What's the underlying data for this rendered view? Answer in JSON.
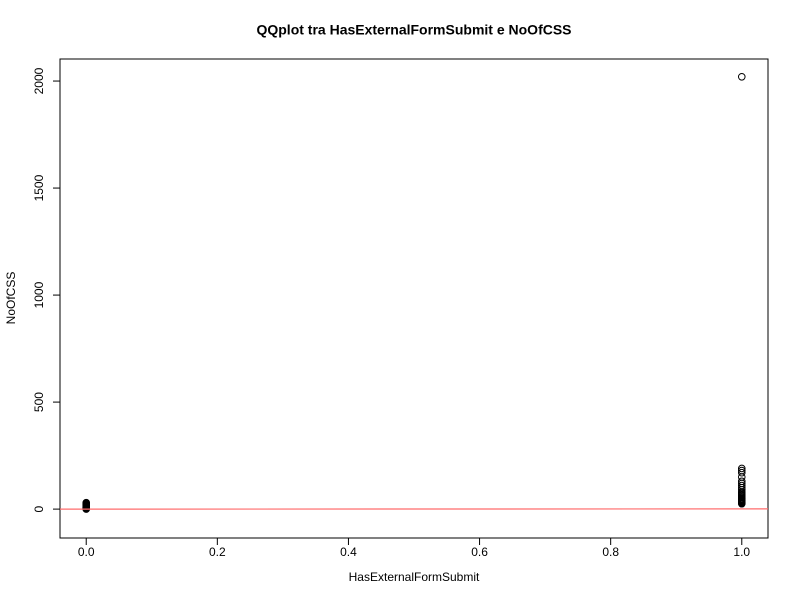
{
  "chart_data": {
    "type": "scatter",
    "title": "QQplot tra HasExternalFormSubmit e NoOfCSS",
    "x_label": "HasExternalFormSubmit",
    "y_label": "NoOfCSS",
    "x": [
      0,
      0,
      0,
      0,
      0,
      0,
      0,
      0,
      0,
      0,
      0,
      0,
      0,
      0,
      1,
      1,
      1,
      1,
      1,
      1,
      1,
      1,
      1,
      1,
      1,
      1,
      1,
      1,
      1,
      1,
      1,
      1,
      1,
      1,
      1,
      1,
      1,
      1,
      1,
      1,
      1
    ],
    "values": [
      0,
      2,
      4,
      6,
      8,
      10,
      12,
      15,
      18,
      20,
      22,
      25,
      28,
      30,
      25,
      28,
      30,
      32,
      35,
      38,
      40,
      42,
      45,
      48,
      50,
      55,
      60,
      65,
      70,
      75,
      80,
      90,
      100,
      110,
      120,
      130,
      150,
      170,
      180,
      190,
      2020
    ],
    "color": "#000000",
    "abline": {
      "intercept": 0,
      "slope": 1,
      "color": "#ff6b6b"
    },
    "xlim": [
      -0.04,
      1.04
    ],
    "ylim": [
      -135,
      2103
    ],
    "xticks": [
      {
        "value": 0,
        "label": "0.0"
      },
      0.2,
      0.4,
      0.6,
      0.8,
      {
        "value": 1,
        "label": "1.0"
      }
    ],
    "yticks": [
      0,
      500,
      1000,
      1500,
      2000
    ],
    "grid": false
  }
}
